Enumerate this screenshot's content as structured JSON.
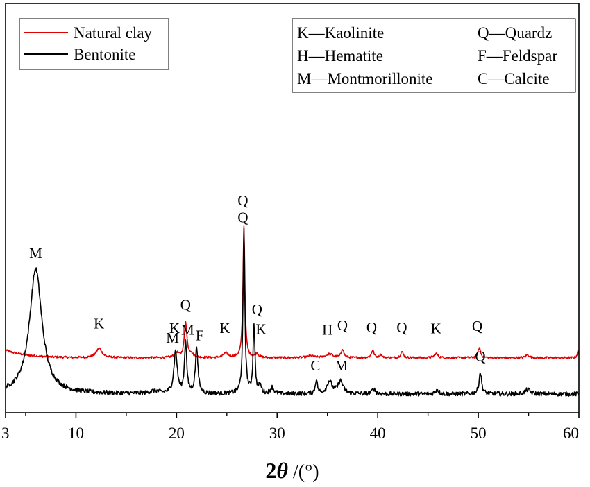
{
  "chart_data": {
    "type": "line",
    "title": "",
    "xlabel": "2θ /(°)",
    "xlabel_parts": {
      "bold": "2",
      "italic": "θ",
      "rest": " /(°)"
    },
    "ylabel": "",
    "xlim": [
      3,
      60
    ],
    "x_ticks": [
      3,
      10,
      20,
      30,
      40,
      50,
      60
    ],
    "x_minor_step": 5,
    "grid": false,
    "legend": {
      "position": "top-left",
      "entries": [
        "Natural clay",
        "Bentonite"
      ]
    },
    "key_box": {
      "left": [
        "K—Kaolinite",
        "H—Hematite",
        "M—Montmorillonite"
      ],
      "right": [
        "Q—Quardz",
        "F—Feldspar",
        "C—Calcite"
      ]
    },
    "series": [
      {
        "name": "Natural clay",
        "color": "#e00000",
        "baseline": 0.58,
        "peaks": [
          {
            "x": 12.3,
            "h": 0.15,
            "w": 0.35,
            "label": "K"
          },
          {
            "x": 20.0,
            "h": 0.08,
            "w": 0.25,
            "label": "K"
          },
          {
            "x": 20.9,
            "h": 0.57,
            "w": 0.15,
            "label": "Q"
          },
          {
            "x": 21.4,
            "h": 0.06,
            "w": 0.3
          },
          {
            "x": 24.9,
            "h": 0.07,
            "w": 0.3,
            "label": "K"
          },
          {
            "x": 26.7,
            "h": 2.1,
            "w": 0.11,
            "label": "Q"
          },
          {
            "x": 28.0,
            "h": 0.06,
            "w": 0.2,
            "label": "K"
          },
          {
            "x": 33.3,
            "h": 0.03,
            "w": 0.4
          },
          {
            "x": 35.2,
            "h": 0.06,
            "w": 0.4,
            "label": "H"
          },
          {
            "x": 36.5,
            "h": 0.14,
            "w": 0.15,
            "label": "Q"
          },
          {
            "x": 39.5,
            "h": 0.12,
            "w": 0.15,
            "label": "Q"
          },
          {
            "x": 40.3,
            "h": 0.05,
            "w": 0.15
          },
          {
            "x": 42.4,
            "h": 0.1,
            "w": 0.15,
            "label": "Q"
          },
          {
            "x": 45.8,
            "h": 0.07,
            "w": 0.2,
            "label": "K"
          },
          {
            "x": 50.1,
            "h": 0.16,
            "w": 0.15,
            "label": "Q"
          },
          {
            "x": 54.9,
            "h": 0.05,
            "w": 0.2
          },
          {
            "x": 59.9,
            "h": 0.1,
            "w": 0.1
          }
        ]
      },
      {
        "name": "Bentonite",
        "color": "#000000",
        "baseline": 0.0,
        "peaks": [
          {
            "x": 6.0,
            "h": 2.0,
            "w": 0.75,
            "label": "M"
          },
          {
            "x": 17.8,
            "h": 0.04,
            "w": 0.6
          },
          {
            "x": 19.9,
            "h": 0.67,
            "w": 0.2,
            "label": "M"
          },
          {
            "x": 20.9,
            "h": 0.84,
            "w": 0.13,
            "label": "M"
          },
          {
            "x": 22.0,
            "h": 0.74,
            "w": 0.15,
            "label": "F"
          },
          {
            "x": 26.7,
            "h": 2.6,
            "w": 0.11,
            "label": "Q"
          },
          {
            "x": 27.7,
            "h": 1.1,
            "w": 0.11,
            "label": "Q"
          },
          {
            "x": 28.3,
            "h": 0.12,
            "w": 0.15
          },
          {
            "x": 29.5,
            "h": 0.1,
            "w": 0.2
          },
          {
            "x": 33.9,
            "h": 0.23,
            "w": 0.12,
            "label": "C"
          },
          {
            "x": 35.2,
            "h": 0.2,
            "w": 0.3
          },
          {
            "x": 36.3,
            "h": 0.2,
            "w": 0.3,
            "label": "M"
          },
          {
            "x": 39.6,
            "h": 0.08,
            "w": 0.2
          },
          {
            "x": 45.9,
            "h": 0.07,
            "w": 0.2
          },
          {
            "x": 50.2,
            "h": 0.35,
            "w": 0.15,
            "label": "Q"
          },
          {
            "x": 54.9,
            "h": 0.07,
            "w": 0.3
          }
        ]
      }
    ],
    "peak_label_positions": [
      {
        "text": "K",
        "x": 12.3,
        "y": 1.05
      },
      {
        "text": "K",
        "x": 19.8,
        "y": 0.98
      },
      {
        "text": "Q",
        "x": 20.9,
        "y": 1.35
      },
      {
        "text": "K",
        "x": 24.8,
        "y": 0.98
      },
      {
        "text": "Q",
        "x": 26.6,
        "y": 3.02
      },
      {
        "text": "K",
        "x": 28.4,
        "y": 0.96
      },
      {
        "text": "H",
        "x": 35.0,
        "y": 0.95
      },
      {
        "text": "Q",
        "x": 36.5,
        "y": 1.02
      },
      {
        "text": "Q",
        "x": 39.4,
        "y": 0.99
      },
      {
        "text": "Q",
        "x": 42.4,
        "y": 0.99
      },
      {
        "text": "K",
        "x": 45.8,
        "y": 0.97
      },
      {
        "text": "Q",
        "x": 49.9,
        "y": 1.01
      },
      {
        "text": "Q",
        "x": 26.6,
        "y": 2.75
      },
      {
        "text": "M",
        "x": 6.0,
        "y": 2.18
      },
      {
        "text": "Q",
        "x": 28.0,
        "y": 1.28
      },
      {
        "text": "M",
        "x": 19.6,
        "y": 0.82
      },
      {
        "text": "M",
        "x": 21.1,
        "y": 0.95
      },
      {
        "text": "F",
        "x": 22.3,
        "y": 0.86
      },
      {
        "text": "C",
        "x": 33.8,
        "y": 0.38
      },
      {
        "text": "M",
        "x": 36.4,
        "y": 0.38
      },
      {
        "text": "Q",
        "x": 50.2,
        "y": 0.53
      }
    ]
  }
}
